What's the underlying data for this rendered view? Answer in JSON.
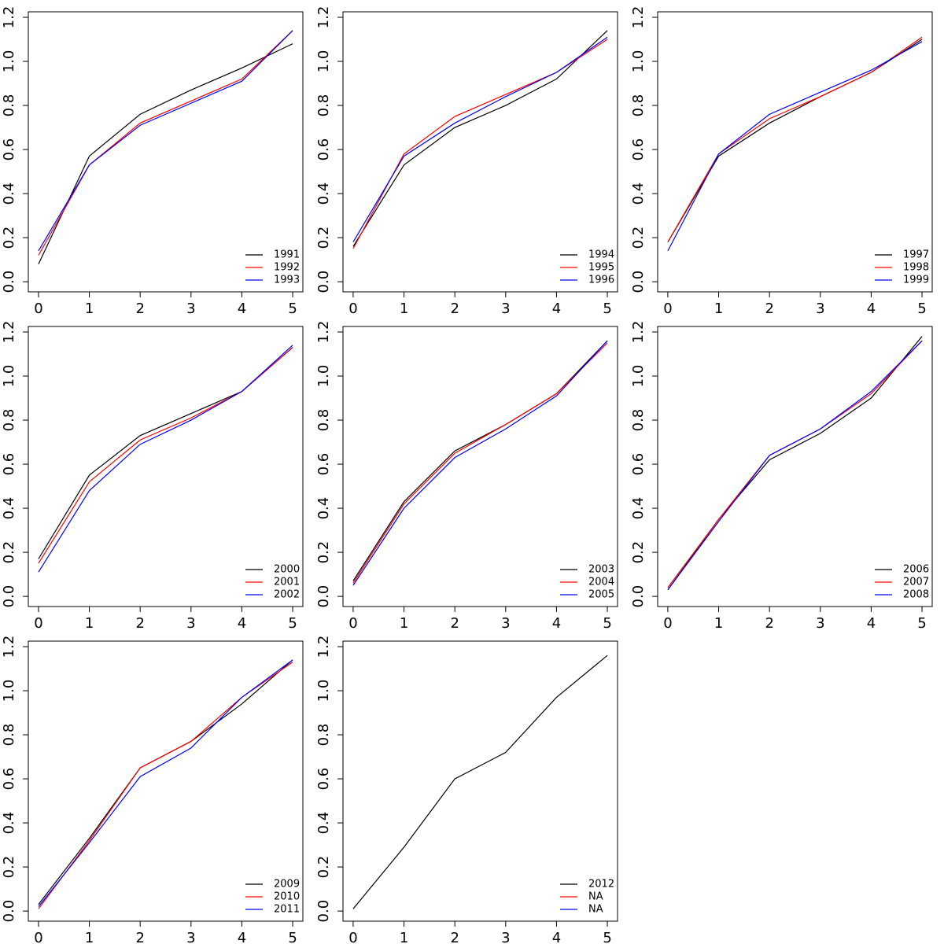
{
  "chart_data": [
    {
      "type": "line",
      "x": [
        0,
        1,
        2,
        3,
        4,
        5
      ],
      "xlim": [
        -0.2,
        5.2
      ],
      "ylim": [
        -0.046,
        1.225
      ],
      "xticks": [
        0,
        1,
        2,
        3,
        4,
        5
      ],
      "yticks": [
        {
          "value": 0,
          "label": "0.0"
        },
        0.2,
        0.4,
        0.6,
        0.8,
        {
          "value": 1,
          "label": "1.0"
        },
        1.2
      ],
      "legend": "bottomright",
      "series": [
        {
          "name": "1991",
          "color": "#000000",
          "values": [
            0.08,
            0.57,
            0.76,
            0.87,
            0.97,
            1.08
          ]
        },
        {
          "name": "1992",
          "color": "#ff0000",
          "values": [
            0.12,
            0.53,
            0.72,
            0.82,
            0.92,
            1.14
          ]
        },
        {
          "name": "1993",
          "color": "#0000ff",
          "values": [
            0.14,
            0.53,
            0.71,
            0.81,
            0.91,
            1.14
          ]
        }
      ]
    },
    {
      "type": "line",
      "x": [
        0,
        1,
        2,
        3,
        4,
        5
      ],
      "xlim": [
        -0.2,
        5.2
      ],
      "ylim": [
        -0.046,
        1.225
      ],
      "xticks": [
        0,
        1,
        2,
        3,
        4,
        5
      ],
      "yticks": [
        {
          "value": 0,
          "label": "0.0"
        },
        0.2,
        0.4,
        0.6,
        0.8,
        {
          "value": 1,
          "label": "1.0"
        },
        1.2
      ],
      "legend": "bottomright",
      "series": [
        {
          "name": "1994",
          "color": "#000000",
          "values": [
            0.16,
            0.53,
            0.7,
            0.8,
            0.92,
            1.14
          ]
        },
        {
          "name": "1995",
          "color": "#ff0000",
          "values": [
            0.15,
            0.58,
            0.75,
            0.85,
            0.95,
            1.1
          ]
        },
        {
          "name": "1996",
          "color": "#0000ff",
          "values": [
            0.18,
            0.57,
            0.72,
            0.84,
            0.95,
            1.11
          ]
        }
      ]
    },
    {
      "type": "line",
      "x": [
        0,
        1,
        2,
        3,
        4,
        5
      ],
      "xlim": [
        -0.2,
        5.2
      ],
      "ylim": [
        -0.046,
        1.225
      ],
      "xticks": [
        0,
        1,
        2,
        3,
        4,
        5
      ],
      "yticks": [
        {
          "value": 0,
          "label": "0.0"
        },
        0.2,
        0.4,
        0.6,
        0.8,
        {
          "value": 1,
          "label": "1.0"
        },
        1.2
      ],
      "legend": "bottomright",
      "series": [
        {
          "name": "1997",
          "color": "#000000",
          "values": [
            0.18,
            0.57,
            0.72,
            0.84,
            0.95,
            1.1
          ]
        },
        {
          "name": "1998",
          "color": "#ff0000",
          "values": [
            0.18,
            0.58,
            0.74,
            0.84,
            0.95,
            1.11
          ]
        },
        {
          "name": "1999",
          "color": "#0000ff",
          "values": [
            0.14,
            0.58,
            0.76,
            0.86,
            0.96,
            1.09
          ]
        }
      ]
    },
    {
      "type": "line",
      "x": [
        0,
        1,
        2,
        3,
        4,
        5
      ],
      "xlim": [
        -0.2,
        5.2
      ],
      "ylim": [
        -0.046,
        1.225
      ],
      "xticks": [
        0,
        1,
        2,
        3,
        4,
        5
      ],
      "yticks": [
        {
          "value": 0,
          "label": "0.0"
        },
        0.2,
        0.4,
        0.6,
        0.8,
        {
          "value": 1,
          "label": "1.0"
        },
        1.2
      ],
      "legend": "bottomright",
      "series": [
        {
          "name": "2000",
          "color": "#000000",
          "values": [
            0.17,
            0.55,
            0.73,
            0.83,
            0.93,
            1.13
          ]
        },
        {
          "name": "2001",
          "color": "#ff0000",
          "values": [
            0.15,
            0.52,
            0.71,
            0.81,
            0.93,
            1.13
          ]
        },
        {
          "name": "2002",
          "color": "#0000ff",
          "values": [
            0.11,
            0.48,
            0.69,
            0.8,
            0.93,
            1.14
          ]
        }
      ]
    },
    {
      "type": "line",
      "x": [
        0,
        1,
        2,
        3,
        4,
        5
      ],
      "xlim": [
        -0.2,
        5.2
      ],
      "ylim": [
        -0.046,
        1.225
      ],
      "xticks": [
        0,
        1,
        2,
        3,
        4,
        5
      ],
      "yticks": [
        {
          "value": 0,
          "label": "0.0"
        },
        0.2,
        0.4,
        0.6,
        0.8,
        {
          "value": 1,
          "label": "1.0"
        },
        1.2
      ],
      "legend": "bottomright",
      "series": [
        {
          "name": "2003",
          "color": "#000000",
          "values": [
            0.07,
            0.43,
            0.66,
            0.78,
            0.92,
            1.16
          ]
        },
        {
          "name": "2004",
          "color": "#ff0000",
          "values": [
            0.06,
            0.42,
            0.65,
            0.78,
            0.92,
            1.15
          ]
        },
        {
          "name": "2005",
          "color": "#0000ff",
          "values": [
            0.05,
            0.4,
            0.63,
            0.76,
            0.91,
            1.16
          ]
        }
      ]
    },
    {
      "type": "line",
      "x": [
        0,
        1,
        2,
        3,
        4,
        5
      ],
      "xlim": [
        -0.2,
        5.2
      ],
      "ylim": [
        -0.046,
        1.225
      ],
      "xticks": [
        0,
        1,
        2,
        3,
        4,
        5
      ],
      "yticks": [
        {
          "value": 0,
          "label": "0.0"
        },
        0.2,
        0.4,
        0.6,
        0.8,
        {
          "value": 1,
          "label": "1.0"
        },
        1.2
      ],
      "legend": "bottomright",
      "series": [
        {
          "name": "2006",
          "color": "#000000",
          "values": [
            0.03,
            0.35,
            0.62,
            0.74,
            0.9,
            1.18
          ]
        },
        {
          "name": "2007",
          "color": "#ff0000",
          "values": [
            0.04,
            0.35,
            0.64,
            0.76,
            0.92,
            1.16
          ]
        },
        {
          "name": "2008",
          "color": "#0000ff",
          "values": [
            0.03,
            0.34,
            0.64,
            0.76,
            0.93,
            1.16
          ]
        }
      ]
    },
    {
      "type": "line",
      "x": [
        0,
        1,
        2,
        3,
        4,
        5
      ],
      "xlim": [
        -0.2,
        5.2
      ],
      "ylim": [
        -0.046,
        1.225
      ],
      "xticks": [
        0,
        1,
        2,
        3,
        4,
        5
      ],
      "yticks": [
        {
          "value": 0,
          "label": "0.0"
        },
        0.2,
        0.4,
        0.6,
        0.8,
        {
          "value": 1,
          "label": "1.0"
        },
        1.2
      ],
      "legend": "bottomright",
      "series": [
        {
          "name": "2009",
          "color": "#000000",
          "values": [
            0.03,
            0.33,
            0.65,
            0.77,
            0.94,
            1.14
          ]
        },
        {
          "name": "2010",
          "color": "#ff0000",
          "values": [
            0.01,
            0.32,
            0.65,
            0.77,
            0.97,
            1.13
          ]
        },
        {
          "name": "2011",
          "color": "#0000ff",
          "values": [
            0.02,
            0.31,
            0.61,
            0.74,
            0.97,
            1.14
          ]
        }
      ]
    },
    {
      "type": "line",
      "x": [
        0,
        1,
        2,
        3,
        4,
        5
      ],
      "xlim": [
        -0.2,
        5.2
      ],
      "ylim": [
        -0.046,
        1.225
      ],
      "xticks": [
        0,
        1,
        2,
        3,
        4,
        5
      ],
      "yticks": [
        {
          "value": 0,
          "label": "0.0"
        },
        0.2,
        0.4,
        0.6,
        0.8,
        {
          "value": 1,
          "label": "1.0"
        },
        1.2
      ],
      "legend": "bottomright",
      "series": [
        {
          "name": "2012",
          "color": "#000000",
          "values": [
            0.01,
            0.29,
            0.6,
            0.72,
            0.97,
            1.16
          ]
        },
        {
          "name": "NA",
          "color": "#ff0000",
          "values": [
            null,
            null,
            null,
            null,
            null,
            null
          ]
        },
        {
          "name": "NA",
          "color": "#0000ff",
          "values": [
            null,
            null,
            null,
            null,
            null,
            null
          ]
        }
      ]
    }
  ]
}
